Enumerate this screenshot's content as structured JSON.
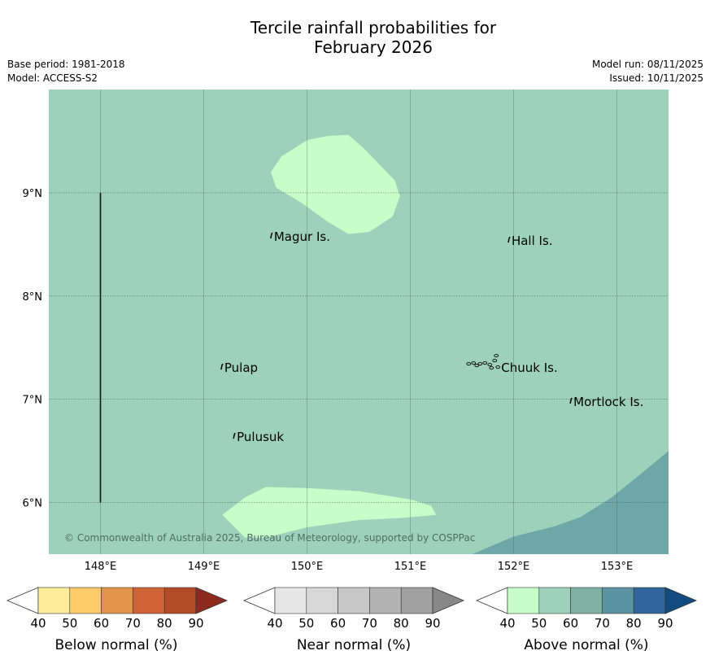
{
  "title_line1": "Tercile rainfall probabilities for",
  "title_line2": "February 2026",
  "base_period": "Base period: 1981-2018",
  "model": "Model: ACCESS-S2",
  "model_run": "Model run: 08/11/2025",
  "issued": "Issued: 10/11/2025",
  "copyright": "© Commonwealth of Australia 2025, Bureau of Meteorology, supported by COSPPac",
  "map": {
    "lon_range": [
      147.5,
      153.5
    ],
    "lat_range": [
      5.5,
      10.0
    ],
    "lon_ticks": [
      148,
      149,
      150,
      151,
      152,
      153
    ],
    "lon_tick_labels": [
      "148°E",
      "149°E",
      "150°E",
      "151°E",
      "152°E",
      "153°E"
    ],
    "lat_ticks": [
      6,
      7,
      8,
      9
    ],
    "lat_tick_labels": [
      "6°N",
      "7°N",
      "8°N",
      "9°N"
    ],
    "background_category": "Above normal 50-60%",
    "colors": {
      "above_40_50": "#c8fdca",
      "above_50_60": "#9dd1bb",
      "above_60_70": "#6fa6a7"
    },
    "places": [
      {
        "name": "Magur Is.",
        "lon": 149.68,
        "lat": 8.55
      },
      {
        "name": "Hall Is.",
        "lon": 151.98,
        "lat": 8.51
      },
      {
        "name": "Pulap",
        "lon": 149.2,
        "lat": 7.28
      },
      {
        "name": "Chuuk Is.",
        "lon": 151.88,
        "lat": 7.28
      },
      {
        "name": "Mortlock Is.",
        "lon": 152.58,
        "lat": 6.95
      },
      {
        "name": "Pulusuk",
        "lon": 149.32,
        "lat": 6.61
      }
    ],
    "boundary_line": {
      "lon": 148.0,
      "lat_from": 6.0,
      "lat_to": 9.0
    }
  },
  "colorbars": [
    {
      "label": "Below normal (%)",
      "ticks": [
        "40",
        "50",
        "60",
        "70",
        "80",
        "90"
      ],
      "colors": [
        "#ffeb9c",
        "#fdcb68",
        "#e2954a",
        "#ce6435",
        "#b34a28",
        "#8c2a1f"
      ]
    },
    {
      "label": "Near normal (%)",
      "ticks": [
        "40",
        "50",
        "60",
        "70",
        "80",
        "90"
      ],
      "colors": [
        "#e6e6e6",
        "#d7d7d7",
        "#c7c7c7",
        "#b3b3b3",
        "#a0a0a0",
        "#888888"
      ]
    },
    {
      "label": "Above normal (%)",
      "ticks": [
        "40",
        "50",
        "60",
        "70",
        "80",
        "90"
      ],
      "colors": [
        "#c8fdca",
        "#9dd1bb",
        "#7fb0a1",
        "#5b93a3",
        "#30669b",
        "#124b7f"
      ]
    }
  ]
}
